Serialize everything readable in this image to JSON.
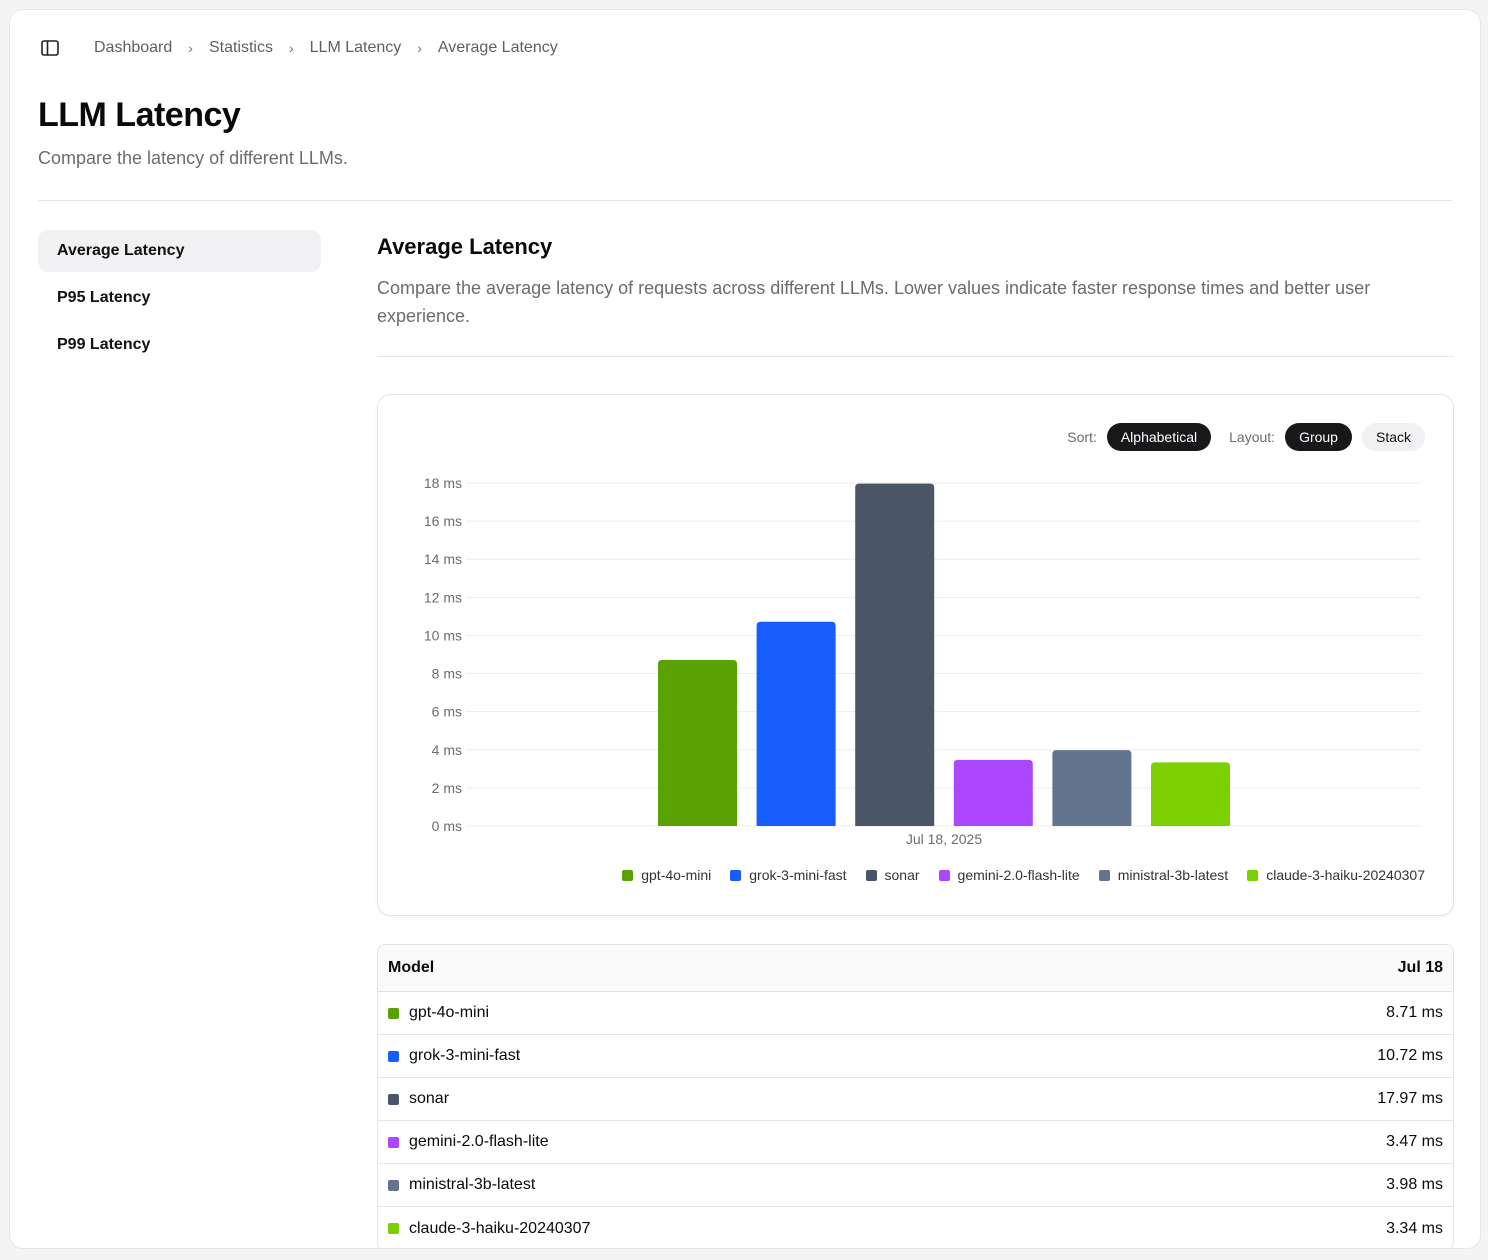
{
  "breadcrumb": [
    "Dashboard",
    "Statistics",
    "LLM Latency",
    "Average Latency"
  ],
  "page": {
    "title": "LLM Latency",
    "subtitle": "Compare the latency of different LLMs."
  },
  "nav": [
    {
      "label": "Average Latency",
      "active": true
    },
    {
      "label": "P95 Latency",
      "active": false
    },
    {
      "label": "P99 Latency",
      "active": false
    }
  ],
  "section": {
    "title": "Average Latency",
    "description": "Compare the average latency of requests across different LLMs. Lower values indicate faster response times and better user experience."
  },
  "controls": {
    "sort_label": "Sort:",
    "sort_value": "Alphabetical",
    "layout_label": "Layout:",
    "layout_group": "Group",
    "layout_stack": "Stack"
  },
  "chart_data": {
    "type": "bar",
    "categories": [
      "Jul 18, 2025"
    ],
    "series": [
      {
        "name": "gpt-4o-mini",
        "color": "#5aa202",
        "values": [
          8.71
        ]
      },
      {
        "name": "grok-3-mini-fast",
        "color": "#165dfc",
        "values": [
          10.72
        ]
      },
      {
        "name": "sonar",
        "color": "#4a5565",
        "values": [
          17.97
        ]
      },
      {
        "name": "gemini-2.0-flash-lite",
        "color": "#ad46ff",
        "values": [
          3.47
        ]
      },
      {
        "name": "ministral-3b-latest",
        "color": "#62748e",
        "values": [
          3.98
        ]
      },
      {
        "name": "claude-3-haiku-20240307",
        "color": "#7ccf00",
        "values": [
          3.34
        ]
      }
    ],
    "yticks": [
      "0 ms",
      "2 ms",
      "4 ms",
      "6 ms",
      "8 ms",
      "10 ms",
      "12 ms",
      "14 ms",
      "16 ms",
      "18 ms"
    ],
    "ylim": [
      0,
      18
    ],
    "grid": true,
    "legend": "bottom-right"
  },
  "table": {
    "headers": [
      "Model",
      "Jul 18"
    ],
    "rows": [
      {
        "model": "gpt-4o-mini",
        "value": "8.71 ms",
        "color": "#5aa202"
      },
      {
        "model": "grok-3-mini-fast",
        "value": "10.72 ms",
        "color": "#165dfc"
      },
      {
        "model": "sonar",
        "value": "17.97 ms",
        "color": "#4a5565"
      },
      {
        "model": "gemini-2.0-flash-lite",
        "value": "3.47 ms",
        "color": "#ad46ff"
      },
      {
        "model": "ministral-3b-latest",
        "value": "3.98 ms",
        "color": "#62748e"
      },
      {
        "model": "claude-3-haiku-20240307",
        "value": "3.34 ms",
        "color": "#7ccf00"
      }
    ]
  }
}
